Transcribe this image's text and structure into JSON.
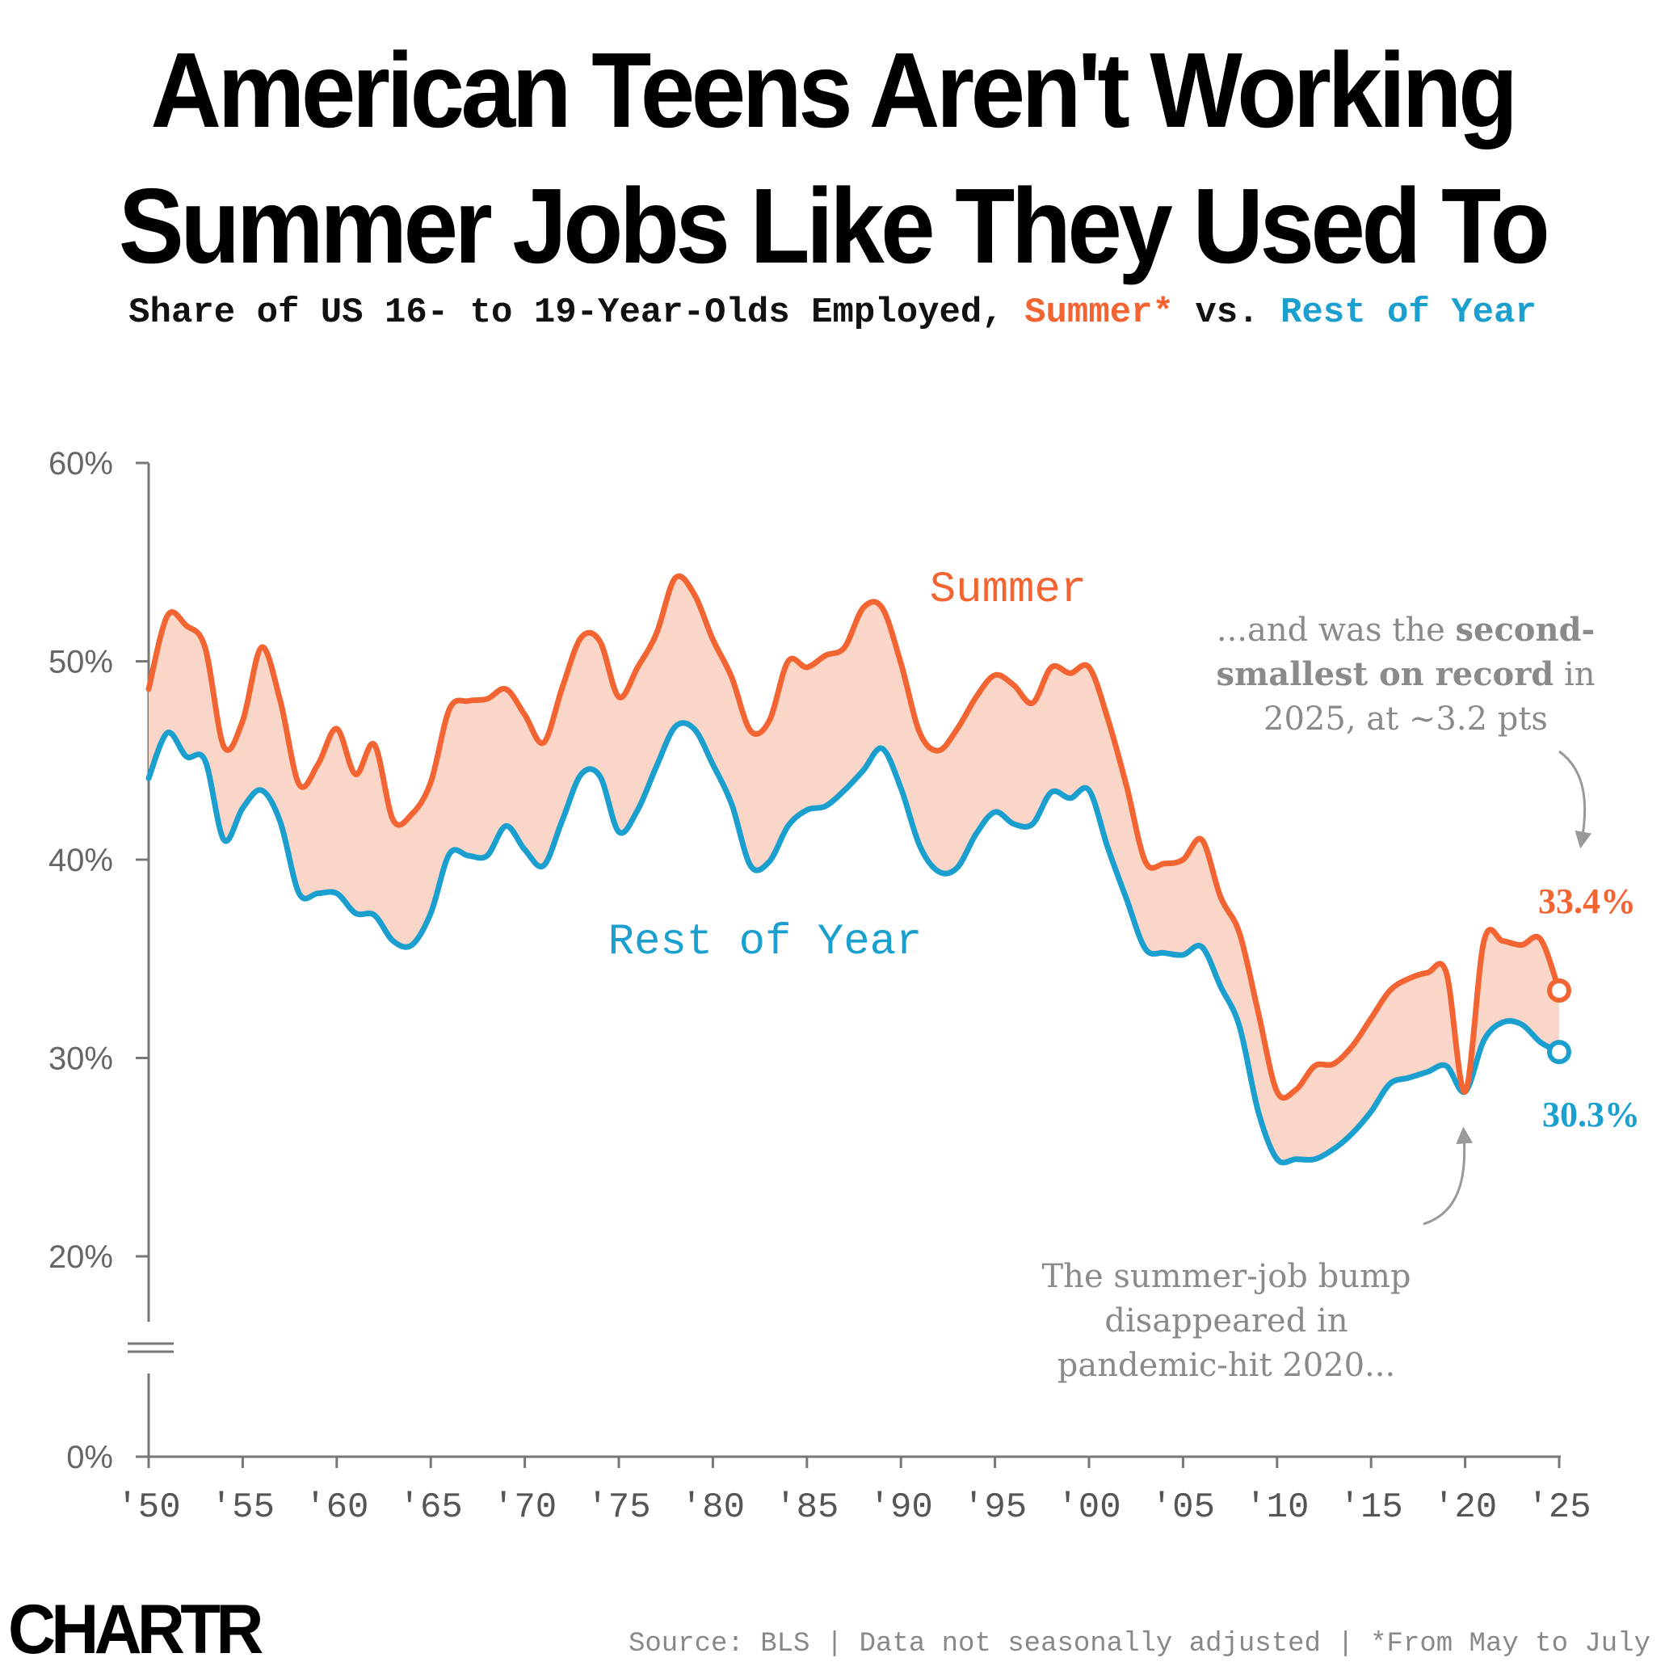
{
  "title_line1": "American Teens Aren't Working",
  "title_line2": "Summer Jobs Like They Used To",
  "subtitle": {
    "prefix": "Share of US 16- to 19-Year-Olds Employed, ",
    "summer": "Summer*",
    "middle": " vs. ",
    "rest": "Rest of Year"
  },
  "colors": {
    "summer": "#f26533",
    "rest": "#1a9fcf",
    "fill": "#fad6c8",
    "axis": "#777777",
    "annotation": "#8a8a8a"
  },
  "chart_data": {
    "type": "line",
    "x": [
      1950,
      1951,
      1952,
      1953,
      1954,
      1955,
      1956,
      1957,
      1958,
      1959,
      1960,
      1961,
      1962,
      1963,
      1964,
      1965,
      1966,
      1967,
      1968,
      1969,
      1970,
      1971,
      1972,
      1973,
      1974,
      1975,
      1976,
      1977,
      1978,
      1979,
      1980,
      1981,
      1982,
      1983,
      1984,
      1985,
      1986,
      1987,
      1988,
      1989,
      1990,
      1991,
      1992,
      1993,
      1994,
      1995,
      1996,
      1997,
      1998,
      1999,
      2000,
      2001,
      2002,
      2003,
      2004,
      2005,
      2006,
      2007,
      2008,
      2009,
      2010,
      2011,
      2012,
      2013,
      2014,
      2015,
      2016,
      2017,
      2018,
      2019,
      2020,
      2021,
      2022,
      2023,
      2024,
      2025
    ],
    "series": [
      {
        "name": "Summer",
        "values": [
          48.6,
          52.3,
          51.8,
          50.7,
          45.7,
          47.0,
          50.7,
          48.0,
          43.8,
          44.8,
          46.6,
          44.3,
          45.8,
          42.0,
          42.3,
          43.9,
          47.6,
          48.0,
          48.1,
          48.6,
          47.3,
          45.9,
          48.7,
          51.2,
          51.0,
          48.2,
          49.7,
          51.4,
          54.2,
          53.4,
          51.1,
          49.2,
          46.5,
          47.0,
          50.0,
          49.7,
          50.3,
          50.7,
          52.7,
          52.7,
          49.9,
          46.4,
          45.5,
          46.6,
          48.2,
          49.3,
          48.8,
          47.9,
          49.7,
          49.4,
          49.7,
          47.1,
          43.7,
          39.9,
          39.8,
          40.0,
          41.0,
          38.1,
          36.3,
          32.3,
          28.3,
          28.4,
          29.6,
          29.7,
          30.6,
          32.0,
          33.4,
          34.0,
          34.3,
          34.3,
          28.3,
          35.9,
          35.9,
          35.7,
          36.0,
          33.4
        ]
      },
      {
        "name": "Rest of Year",
        "values": [
          44.1,
          46.4,
          45.2,
          45.0,
          41.0,
          42.6,
          43.5,
          41.9,
          38.3,
          38.3,
          38.3,
          37.3,
          37.2,
          35.9,
          35.7,
          37.3,
          40.3,
          40.2,
          40.2,
          41.7,
          40.5,
          39.7,
          42.0,
          44.3,
          44.2,
          41.4,
          42.5,
          44.7,
          46.7,
          46.6,
          44.8,
          42.8,
          39.7,
          39.9,
          41.7,
          42.5,
          42.7,
          43.5,
          44.5,
          45.6,
          43.6,
          40.7,
          39.4,
          39.6,
          41.3,
          42.4,
          41.8,
          41.8,
          43.4,
          43.1,
          43.5,
          40.6,
          38.0,
          35.5,
          35.3,
          35.2,
          35.6,
          33.6,
          31.6,
          27.3,
          24.9,
          24.9,
          24.9,
          25.4,
          26.2,
          27.3,
          28.7,
          29.0,
          29.3,
          29.6,
          28.3,
          30.9,
          31.8,
          31.7,
          30.8,
          30.3
        ]
      }
    ],
    "yticks": [
      "60%",
      "50%",
      "40%",
      "30%",
      "20%",
      "0%"
    ],
    "xticks": [
      "'50",
      "'55",
      "'60",
      "'65",
      "'70",
      "'75",
      "'80",
      "'85",
      "'90",
      "'95",
      "'00",
      "'05",
      "'10",
      "'15",
      "'20",
      "'25"
    ],
    "ylim": [
      0,
      60
    ],
    "y_axis_break": true,
    "series_labels": {
      "summer": "Summer",
      "rest": "Rest of Year"
    },
    "end_labels": {
      "summer": "33.4%",
      "rest": "30.3%"
    },
    "annotations": {
      "right_top": [
        "...and was the ",
        "second-",
        "smallest on record",
        " in",
        "2025, at ~3.2 pts"
      ],
      "bottom": [
        "The summer-job bump",
        "disappeared in",
        "pandemic-hit 2020..."
      ]
    }
  },
  "footer": {
    "logo": "CHARTR",
    "source": "Source: BLS | Data not seasonally adjusted | *From May to July"
  }
}
